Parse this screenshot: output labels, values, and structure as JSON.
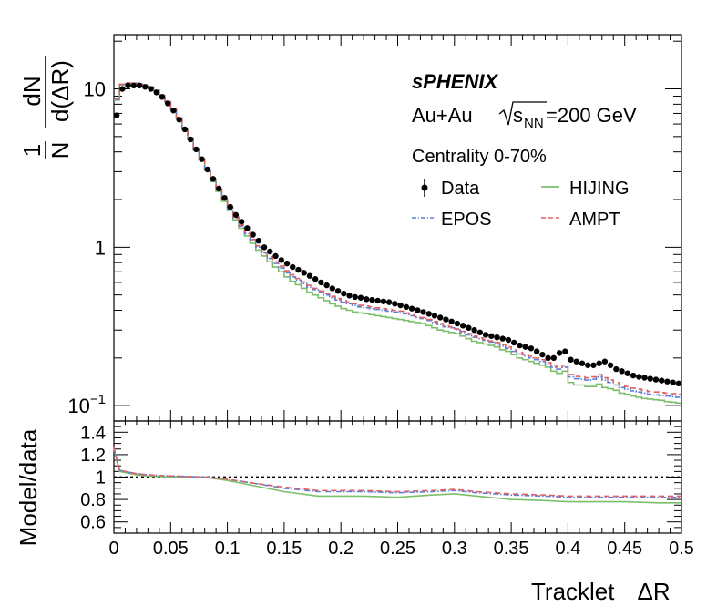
{
  "chart_data": [
    {
      "type": "line",
      "panel": "main",
      "title": "",
      "experiment": "sPHENIX",
      "system": "Au+Au",
      "energy": {
        "sqrt": "s",
        "sub": "NN",
        "rest": "=200 GeV"
      },
      "centrality": "Centrality 0-70%",
      "ylabel": {
        "num1": "1",
        "den1": "N",
        "num2": "dN",
        "den2": "d(ΔR)"
      },
      "yscale": "log",
      "ylim": [
        0.08,
        22
      ],
      "xlim": [
        0,
        0.5
      ],
      "y_tick_labels": [
        {
          "value": 0.1,
          "base": "10",
          "exp": "−1"
        },
        {
          "value": 1,
          "base": "1",
          "exp": ""
        },
        {
          "value": 10,
          "base": "10",
          "exp": ""
        }
      ],
      "legend_placement": "top-right",
      "legend": {
        "data": "Data",
        "hijing": "HIJING",
        "epos": "EPOS",
        "ampt": "AMPT"
      },
      "x": [
        0.0025,
        0.0075,
        0.0125,
        0.0175,
        0.0225,
        0.0275,
        0.0325,
        0.0375,
        0.0425,
        0.0475,
        0.0525,
        0.0575,
        0.0625,
        0.0675,
        0.0725,
        0.0775,
        0.0825,
        0.0875,
        0.0925,
        0.0975,
        0.1025,
        0.1075,
        0.1125,
        0.1175,
        0.1225,
        0.1275,
        0.1325,
        0.1375,
        0.1425,
        0.1475,
        0.1525,
        0.1575,
        0.1625,
        0.1675,
        0.1725,
        0.1775,
        0.1825,
        0.1875,
        0.1925,
        0.1975,
        0.2025,
        0.2075,
        0.2125,
        0.2175,
        0.2225,
        0.2275,
        0.2325,
        0.2375,
        0.2425,
        0.2475,
        0.2525,
        0.2575,
        0.2625,
        0.2675,
        0.2725,
        0.2775,
        0.2825,
        0.2875,
        0.2925,
        0.2975,
        0.3025,
        0.3075,
        0.3125,
        0.3175,
        0.3225,
        0.3275,
        0.3325,
        0.3375,
        0.3425,
        0.3475,
        0.3525,
        0.3575,
        0.3625,
        0.3675,
        0.3725,
        0.3775,
        0.3825,
        0.3875,
        0.3925,
        0.3975,
        0.4025,
        0.4075,
        0.4125,
        0.4175,
        0.4225,
        0.4275,
        0.4325,
        0.4375,
        0.4425,
        0.4475,
        0.4525,
        0.4575,
        0.4625,
        0.4675,
        0.4725,
        0.4775,
        0.4825,
        0.4875,
        0.4925,
        0.4975
      ],
      "series": [
        {
          "name": "Data",
          "color": "#000000",
          "style": "markers",
          "values": [
            6.8,
            10.0,
            10.5,
            10.5,
            10.5,
            10.3,
            10.0,
            9.5,
            8.9,
            8.1,
            7.3,
            6.4,
            5.55,
            4.8,
            4.15,
            3.6,
            3.1,
            2.7,
            2.35,
            2.05,
            1.8,
            1.6,
            1.45,
            1.32,
            1.2,
            1.1,
            1.0,
            0.94,
            0.88,
            0.83,
            0.79,
            0.75,
            0.72,
            0.69,
            0.66,
            0.63,
            0.6,
            0.575,
            0.55,
            0.53,
            0.51,
            0.495,
            0.485,
            0.48,
            0.47,
            0.465,
            0.46,
            0.455,
            0.45,
            0.44,
            0.43,
            0.42,
            0.41,
            0.4,
            0.39,
            0.38,
            0.37,
            0.36,
            0.35,
            0.34,
            0.33,
            0.32,
            0.31,
            0.3,
            0.29,
            0.28,
            0.275,
            0.27,
            0.265,
            0.26,
            0.25,
            0.24,
            0.235,
            0.23,
            0.22,
            0.21,
            0.2,
            0.2,
            0.215,
            0.22,
            0.195,
            0.19,
            0.185,
            0.18,
            0.18,
            0.185,
            0.19,
            0.18,
            0.17,
            0.165,
            0.16,
            0.155,
            0.152,
            0.15,
            0.148,
            0.146,
            0.144,
            0.142,
            0.14,
            0.138
          ]
        },
        {
          "name": "HIJING",
          "color": "#7cbf6b",
          "style": "solid",
          "values": [
            8.5,
            10.6,
            10.8,
            10.8,
            10.7,
            10.5,
            10.2,
            9.7,
            9.05,
            8.25,
            7.4,
            6.5,
            5.6,
            4.8,
            4.1,
            3.55,
            3.05,
            2.6,
            2.25,
            1.95,
            1.7,
            1.49,
            1.32,
            1.18,
            1.06,
            0.96,
            0.88,
            0.81,
            0.75,
            0.7,
            0.65,
            0.61,
            0.58,
            0.55,
            0.52,
            0.5,
            0.48,
            0.46,
            0.44,
            0.425,
            0.41,
            0.4,
            0.39,
            0.385,
            0.38,
            0.375,
            0.37,
            0.365,
            0.36,
            0.355,
            0.35,
            0.345,
            0.34,
            0.335,
            0.33,
            0.32,
            0.31,
            0.3,
            0.295,
            0.29,
            0.285,
            0.275,
            0.265,
            0.255,
            0.25,
            0.245,
            0.24,
            0.235,
            0.225,
            0.22,
            0.21,
            0.2,
            0.195,
            0.19,
            0.185,
            0.18,
            0.175,
            0.165,
            0.16,
            0.165,
            0.14,
            0.135,
            0.135,
            0.132,
            0.132,
            0.137,
            0.13,
            0.128,
            0.125,
            0.12,
            0.118,
            0.115,
            0.113,
            0.111,
            0.11,
            0.109,
            0.108,
            0.106,
            0.105,
            0.104
          ]
        },
        {
          "name": "EPOS",
          "color": "#5b7fd9",
          "style": "dashdot",
          "values": [
            8.6,
            10.7,
            10.85,
            10.85,
            10.75,
            10.55,
            10.25,
            9.75,
            9.1,
            8.3,
            7.45,
            6.55,
            5.65,
            4.85,
            4.15,
            3.6,
            3.1,
            2.65,
            2.3,
            2.0,
            1.75,
            1.53,
            1.36,
            1.22,
            1.1,
            1.0,
            0.92,
            0.85,
            0.79,
            0.74,
            0.69,
            0.65,
            0.62,
            0.59,
            0.56,
            0.54,
            0.52,
            0.5,
            0.48,
            0.465,
            0.45,
            0.44,
            0.43,
            0.42,
            0.415,
            0.41,
            0.405,
            0.4,
            0.395,
            0.39,
            0.385,
            0.38,
            0.37,
            0.36,
            0.355,
            0.345,
            0.335,
            0.325,
            0.315,
            0.31,
            0.3,
            0.29,
            0.28,
            0.27,
            0.265,
            0.258,
            0.252,
            0.245,
            0.238,
            0.23,
            0.22,
            0.212,
            0.206,
            0.2,
            0.195,
            0.19,
            0.182,
            0.175,
            0.17,
            0.175,
            0.152,
            0.148,
            0.147,
            0.145,
            0.147,
            0.152,
            0.145,
            0.14,
            0.135,
            0.13,
            0.127,
            0.124,
            0.122,
            0.12,
            0.118,
            0.117,
            0.116,
            0.115,
            0.114,
            0.113
          ]
        },
        {
          "name": "AMPT",
          "color": "#e06060",
          "style": "dashed",
          "values": [
            8.7,
            10.7,
            10.9,
            10.9,
            10.8,
            10.6,
            10.3,
            9.8,
            9.15,
            8.35,
            7.5,
            6.6,
            5.7,
            4.9,
            4.2,
            3.63,
            3.12,
            2.68,
            2.32,
            2.02,
            1.77,
            1.55,
            1.38,
            1.24,
            1.12,
            1.02,
            0.94,
            0.87,
            0.81,
            0.76,
            0.71,
            0.67,
            0.635,
            0.605,
            0.575,
            0.55,
            0.53,
            0.51,
            0.49,
            0.475,
            0.46,
            0.45,
            0.44,
            0.43,
            0.425,
            0.42,
            0.415,
            0.41,
            0.405,
            0.4,
            0.395,
            0.385,
            0.375,
            0.365,
            0.36,
            0.35,
            0.34,
            0.33,
            0.32,
            0.315,
            0.305,
            0.295,
            0.285,
            0.275,
            0.268,
            0.262,
            0.256,
            0.25,
            0.243,
            0.235,
            0.225,
            0.217,
            0.21,
            0.205,
            0.2,
            0.195,
            0.187,
            0.18,
            0.175,
            0.18,
            0.157,
            0.153,
            0.152,
            0.15,
            0.152,
            0.157,
            0.15,
            0.145,
            0.14,
            0.135,
            0.132,
            0.129,
            0.127,
            0.125,
            0.123,
            0.122,
            0.121,
            0.12,
            0.119,
            0.118
          ]
        }
      ]
    },
    {
      "type": "line",
      "panel": "ratio",
      "ylabel": "Model/data",
      "xlabel": {
        "main": "Tracklet",
        "delta": "ΔR"
      },
      "ylim": [
        0.5,
        1.5
      ],
      "xlim": [
        0,
        0.5
      ],
      "y_ticks": [
        0.6,
        0.8,
        1,
        1.2,
        1.4
      ],
      "y_tick_labels": [
        "0.6",
        "0.8",
        "1",
        "1.2",
        "1.4"
      ],
      "x_ticks": [
        0,
        0.05,
        0.1,
        0.15,
        0.2,
        0.25,
        0.3,
        0.35,
        0.4,
        0.45,
        0.5
      ],
      "x_tick_labels": [
        "0",
        "0.05",
        "0.1",
        "0.15",
        "0.2",
        "0.25",
        "0.3",
        "0.35",
        "0.4",
        "0.45",
        "0.5"
      ],
      "reference_line": 1,
      "x": [
        0.0,
        0.005,
        0.01,
        0.02,
        0.03,
        0.05,
        0.08,
        0.1,
        0.12,
        0.15,
        0.18,
        0.2,
        0.22,
        0.25,
        0.28,
        0.3,
        0.32,
        0.35,
        0.38,
        0.4,
        0.42,
        0.45,
        0.48,
        0.5
      ],
      "series": [
        {
          "name": "HIJING",
          "color": "#7cbf6b",
          "style": "solid",
          "values": [
            1.25,
            1.05,
            1.04,
            1.02,
            1.01,
            1.0,
            1.0,
            0.97,
            0.93,
            0.87,
            0.83,
            0.83,
            0.83,
            0.82,
            0.84,
            0.85,
            0.83,
            0.8,
            0.79,
            0.78,
            0.78,
            0.78,
            0.77,
            0.77
          ]
        },
        {
          "name": "EPOS",
          "color": "#5b7fd9",
          "style": "dashdot",
          "values": [
            1.26,
            1.06,
            1.05,
            1.03,
            1.02,
            1.01,
            1.0,
            0.98,
            0.95,
            0.9,
            0.87,
            0.87,
            0.87,
            0.86,
            0.87,
            0.88,
            0.86,
            0.84,
            0.83,
            0.82,
            0.82,
            0.82,
            0.82,
            0.82
          ]
        },
        {
          "name": "AMPT",
          "color": "#e06060",
          "style": "dashed",
          "values": [
            1.27,
            1.06,
            1.05,
            1.03,
            1.02,
            1.01,
            1.0,
            0.98,
            0.95,
            0.91,
            0.88,
            0.88,
            0.88,
            0.87,
            0.88,
            0.89,
            0.87,
            0.85,
            0.84,
            0.83,
            0.83,
            0.83,
            0.83,
            0.83
          ]
        }
      ]
    }
  ]
}
